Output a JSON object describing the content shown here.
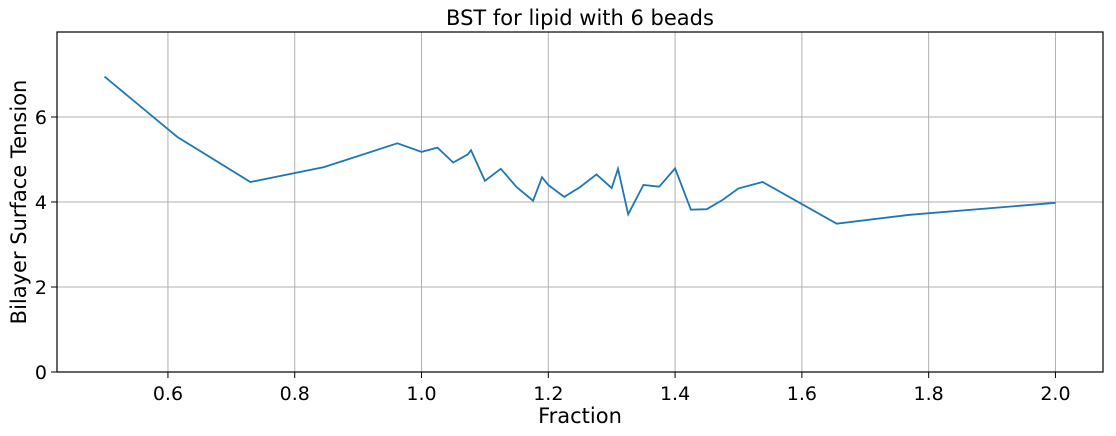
{
  "chart_data": {
    "type": "line",
    "title": "BST for lipid with 6 beads",
    "xlabel": "Fraction",
    "ylabel": "Bilayer Surface Tension",
    "xlim": [
      0.425,
      2.075
    ],
    "ylim": [
      0,
      8
    ],
    "xticks": [
      0.6,
      0.8,
      1.0,
      1.2,
      1.4,
      1.6,
      1.8,
      2.0
    ],
    "xtick_labels": [
      "0.6",
      "0.8",
      "1.0",
      "1.2",
      "1.4",
      "1.6",
      "1.8",
      "2.0"
    ],
    "yticks": [
      0,
      2,
      4,
      6
    ],
    "ytick_labels": [
      "0",
      "2",
      "4",
      "6"
    ],
    "grid": true,
    "line_color": "#1f77b4",
    "series": [
      {
        "x": [
          0.5,
          0.615,
          0.73,
          0.846,
          0.962,
          1.0,
          1.025,
          1.05,
          1.073,
          1.078,
          1.1,
          1.125,
          1.15,
          1.176,
          1.19,
          1.2,
          1.225,
          1.25,
          1.276,
          1.3,
          1.31,
          1.326,
          1.35,
          1.375,
          1.4,
          1.425,
          1.45,
          1.475,
          1.5,
          1.538,
          1.655,
          1.77,
          2.0
        ],
        "y": [
          6.95,
          5.53,
          4.47,
          4.82,
          5.38,
          5.18,
          5.28,
          4.93,
          5.12,
          5.22,
          4.5,
          4.78,
          4.35,
          4.03,
          4.58,
          4.4,
          4.12,
          4.35,
          4.65,
          4.33,
          4.78,
          3.71,
          4.4,
          4.36,
          4.79,
          3.82,
          3.83,
          4.05,
          4.32,
          4.47,
          3.49,
          3.7,
          3.98
        ]
      }
    ]
  }
}
